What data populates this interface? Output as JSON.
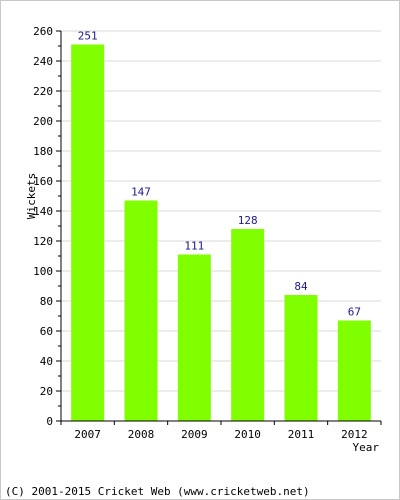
{
  "chart_data": {
    "type": "bar",
    "categories": [
      "2007",
      "2008",
      "2009",
      "2010",
      "2011",
      "2012"
    ],
    "values": [
      251,
      147,
      111,
      128,
      84,
      67
    ],
    "data_labels": [
      "251",
      "147",
      "111",
      "128",
      "84",
      "67"
    ],
    "xlabel": "Year",
    "ylabel": "Wickets",
    "ylim": [
      0,
      260
    ],
    "ytick_step": 20,
    "minor_tick_step": 10,
    "yticks": [
      "0",
      "20",
      "40",
      "60",
      "80",
      "100",
      "120",
      "140",
      "160",
      "180",
      "200",
      "220",
      "240",
      "260"
    ],
    "grid": true,
    "bar_color": "#80ff00",
    "label_color": "#1a1a8c",
    "grid_color": "#d8d8d8"
  },
  "footer": {
    "text": "(C) 2001-2015 Cricket Web (www.cricketweb.net)"
  }
}
